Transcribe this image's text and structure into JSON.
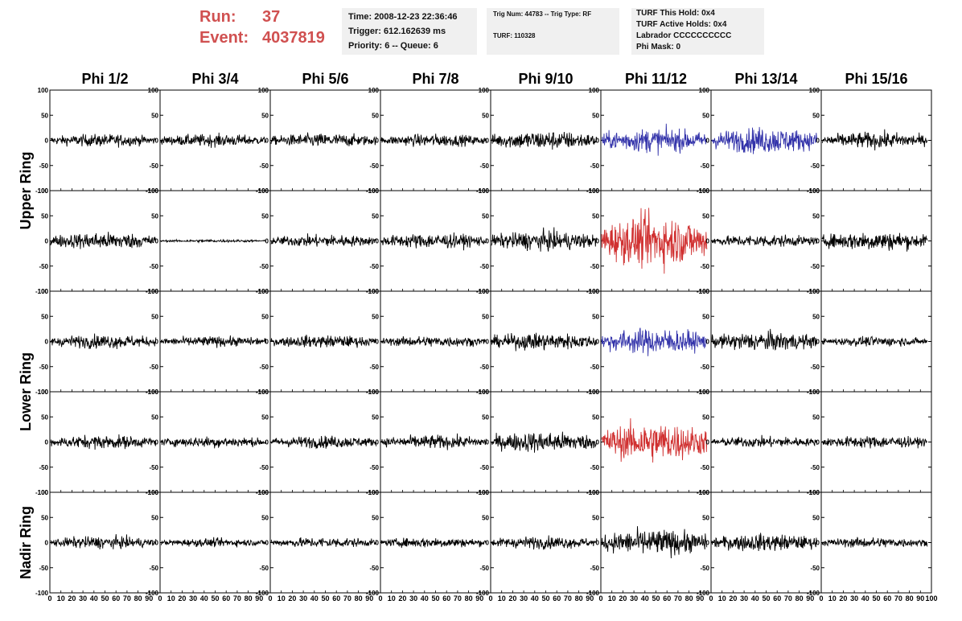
{
  "run": {
    "run_label": "Run:",
    "run_value": "37",
    "event_label": "Event:",
    "event_value": "4037819"
  },
  "info1": {
    "time": "Time: 2008-12-23 22:36:46",
    "trigger": "Trigger: 612.162639 ms",
    "priority": "Priority: 6 -- Queue: 6"
  },
  "info2": {
    "trig": "Trig Num: 44783 -- Trig Type: RF",
    "turf": "TURF: 110328"
  },
  "info3": {
    "hold": "TURF This Hold: 0x4",
    "active": "TURF Active Holds: 0x4",
    "labrador": "Labrador CCCCCCCCCC",
    "phimask": "Phi Mask: 0"
  },
  "colors": {
    "normal": "#000000",
    "blue": "#3333aa",
    "red": "#d03030",
    "header_red": "#d05050"
  },
  "chart_data": {
    "type": "line",
    "columns": [
      "Phi 1/2",
      "Phi 3/4",
      "Phi 5/6",
      "Phi 7/8",
      "Phi 9/10",
      "Phi 11/12",
      "Phi 13/14",
      "Phi 15/16"
    ],
    "ring_labels": [
      "Upper Ring",
      "Lower Ring",
      "Nadir Ring"
    ],
    "y_ticks": [
      100,
      50,
      0,
      -50,
      -100
    ],
    "x_ticks": [
      "0",
      "10",
      "20",
      "30",
      "40",
      "50",
      "60",
      "70",
      "80",
      "90",
      "100"
    ],
    "xlim": [
      0,
      100
    ],
    "ylim": [
      -100,
      100
    ],
    "rows": [
      {
        "amplitudes": [
          18,
          18,
          20,
          18,
          28,
          35,
          38,
          24
        ],
        "colors": [
          "normal",
          "normal",
          "normal",
          "normal",
          "normal",
          "blue",
          "blue",
          "normal"
        ]
      },
      {
        "amplitudes": [
          25,
          4,
          18,
          22,
          28,
          75,
          18,
          28
        ],
        "colors": [
          "normal",
          "normal",
          "normal",
          "normal",
          "normal",
          "red",
          "normal",
          "normal"
        ]
      },
      {
        "amplitudes": [
          20,
          15,
          18,
          16,
          25,
          38,
          28,
          14
        ],
        "colors": [
          "normal",
          "normal",
          "normal",
          "normal",
          "normal",
          "blue",
          "normal",
          "normal"
        ]
      },
      {
        "amplitudes": [
          20,
          16,
          18,
          20,
          30,
          58,
          16,
          18
        ],
        "colors": [
          "normal",
          "normal",
          "normal",
          "normal",
          "normal",
          "red",
          "normal",
          "normal"
        ]
      },
      {
        "amplitudes": [
          18,
          12,
          15,
          15,
          18,
          38,
          25,
          15
        ],
        "colors": [
          "normal",
          "normal",
          "normal",
          "normal",
          "normal",
          "normal",
          "normal",
          "normal"
        ]
      }
    ]
  }
}
